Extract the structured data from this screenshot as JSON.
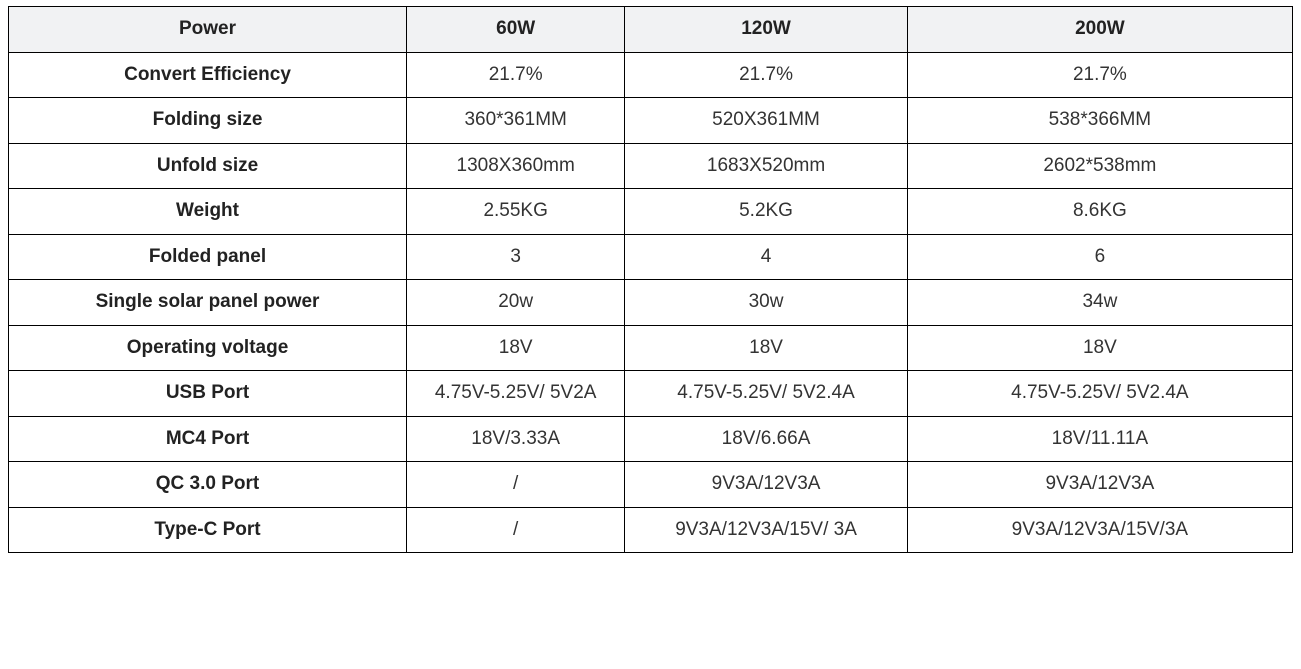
{
  "table": {
    "type": "table",
    "background_color": "#ffffff",
    "header_bg": "#f1f2f3",
    "border_color": "#000000",
    "text_color": "#333333",
    "header_text_color": "#222222",
    "label_text_color": "#222222",
    "font_family": "Verdana",
    "font_size_pt": 14,
    "header_font_weight": 700,
    "label_font_weight": 700,
    "cell_font_weight": 400,
    "column_widths_pct": [
      31,
      17,
      22,
      30
    ],
    "columns": [
      "Power",
      "60W",
      "120W",
      "200W"
    ],
    "rows": [
      {
        "label": "Convert Efficiency",
        "c1": "21.7%",
        "c2": "21.7%",
        "c3": "21.7%"
      },
      {
        "label": "Folding size",
        "c1": "360*361MM",
        "c2": "520X361MM",
        "c3": "538*366MM"
      },
      {
        "label": "Unfold size",
        "c1": "1308X360mm",
        "c2": "1683X520mm",
        "c3": "2602*538mm"
      },
      {
        "label": "Weight",
        "c1": "2.55KG",
        "c2": "5.2KG",
        "c3": "8.6KG"
      },
      {
        "label": "Folded panel",
        "c1": "3",
        "c2": "4",
        "c3": "6"
      },
      {
        "label": "Single solar panel power",
        "c1": "20w",
        "c2": "30w",
        "c3": "34w"
      },
      {
        "label": "Operating voltage",
        "c1": "18V",
        "c2": "18V",
        "c3": "18V"
      },
      {
        "label": "USB Port",
        "c1": "4.75V-5.25V/ 5V2A",
        "c2": "4.75V-5.25V/ 5V2.4A",
        "c3": "4.75V-5.25V/ 5V2.4A"
      },
      {
        "label": "MC4 Port",
        "c1": "18V/3.33A",
        "c2": "18V/6.66A",
        "c3": "18V/11.11A"
      },
      {
        "label": "QC 3.0 Port",
        "c1": "/",
        "c2": "9V3A/12V3A",
        "c3": "9V3A/12V3A"
      },
      {
        "label": "Type-C Port",
        "c1": "/",
        "c2": "9V3A/12V3A/15V/ 3A",
        "c3": "9V3A/12V3A/15V/3A"
      }
    ]
  }
}
